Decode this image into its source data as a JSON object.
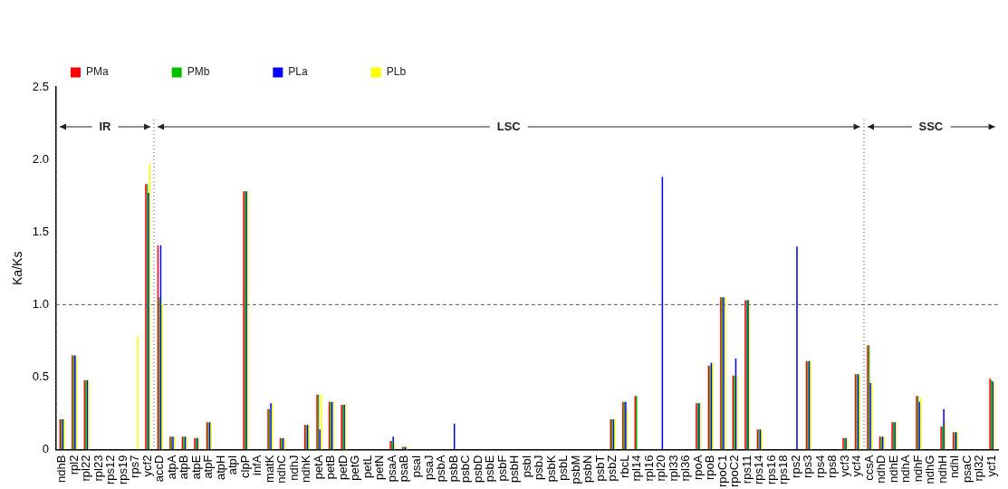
{
  "chart_data": {
    "type": "bar",
    "ylabel": "Ka/Ks",
    "categories": [
      "ndhB",
      "rpl2",
      "rpl22",
      "rpl23",
      "rps12",
      "rps19",
      "rps7",
      "ycf2",
      "accD",
      "atpA",
      "atpB",
      "atpE",
      "atpF",
      "atpH",
      "atpI",
      "clpP",
      "infA",
      "matK",
      "ndhC",
      "ndhJ",
      "ndhK",
      "petA",
      "petB",
      "petD",
      "petG",
      "petL",
      "petN",
      "psaA",
      "psaB",
      "psaI",
      "psaJ",
      "psbA",
      "psbB",
      "psbC",
      "psbD",
      "psbE",
      "psbF",
      "psbH",
      "psbI",
      "psbJ",
      "psbK",
      "psbL",
      "psbM",
      "psbN",
      "psbT",
      "psbZ",
      "rbcL",
      "rpl14",
      "rpl16",
      "rpl20",
      "rpl33",
      "rpl36",
      "rpoA",
      "rpoB",
      "rpoC1",
      "rpoC2",
      "rps11",
      "rps14",
      "rps16",
      "rps18",
      "rps2",
      "rps3",
      "rps4",
      "rps8",
      "ycf3",
      "ycf4",
      "ccsA",
      "ndhD",
      "ndhE",
      "ndhA",
      "ndhF",
      "ndhG",
      "ndhH",
      "ndhI",
      "psaC",
      "rpl32",
      "ycf1"
    ],
    "series": [
      {
        "name": "PMa",
        "color": "#ff0000",
        "values": [
          0.21,
          0.65,
          0.48,
          0,
          0,
          0,
          0,
          1.83,
          1.41,
          0.09,
          0.09,
          0.08,
          0.19,
          0,
          0,
          1.78,
          0,
          0.28,
          0.08,
          0,
          0.17,
          0.38,
          0.33,
          0.31,
          0,
          0,
          0,
          0.06,
          0.02,
          0,
          0,
          0,
          0,
          0,
          0,
          0,
          0,
          0,
          0,
          0,
          0,
          0,
          0,
          0,
          0,
          0.21,
          0.33,
          0.37,
          0,
          0,
          0,
          0,
          0.32,
          0.58,
          1.05,
          0.51,
          1.03,
          0.14,
          0,
          0,
          0,
          0.61,
          0,
          0,
          0.08,
          0.52,
          0.72,
          0.09,
          0.19,
          0,
          0.37,
          0,
          0.16,
          0.12,
          0,
          0,
          0.49
        ]
      },
      {
        "name": "PMb",
        "color": "#00c000",
        "values": [
          0.21,
          0.65,
          0.48,
          0,
          0,
          0,
          0,
          1.83,
          1.05,
          0.09,
          0.09,
          0.08,
          0.19,
          0,
          0,
          1.78,
          0,
          0.28,
          0.08,
          0,
          0.17,
          0.38,
          0.33,
          0.31,
          0,
          0,
          0,
          0.06,
          0.02,
          0,
          0,
          0,
          0,
          0,
          0,
          0,
          0,
          0,
          0,
          0,
          0,
          0,
          0,
          0,
          0,
          0.21,
          0.33,
          0.37,
          0,
          0,
          0,
          0,
          0.32,
          0.58,
          1.05,
          0.51,
          1.03,
          0.14,
          0,
          0,
          0,
          0.61,
          0,
          0,
          0.08,
          0.52,
          0.72,
          0.09,
          0.19,
          0,
          0.37,
          0,
          0.16,
          0.12,
          0,
          0,
          0.48
        ]
      },
      {
        "name": "PLa",
        "color": "#0000ff",
        "values": [
          0.21,
          0.65,
          0.48,
          0,
          0,
          0,
          0,
          1.77,
          1.41,
          0.09,
          0.09,
          0.08,
          0.19,
          0,
          0,
          1.78,
          0,
          0.32,
          0.08,
          0,
          0.17,
          0.14,
          0.33,
          0.31,
          0,
          0,
          0,
          0.09,
          0.02,
          0,
          0,
          0,
          0.18,
          0,
          0,
          0,
          0,
          0,
          0,
          0,
          0,
          0,
          0,
          0,
          0,
          0.21,
          0.33,
          0,
          0,
          1.88,
          0,
          0,
          0.32,
          0.6,
          1.05,
          0.63,
          1.03,
          0.14,
          0,
          0,
          1.4,
          0.61,
          0,
          0,
          0.08,
          0.52,
          0.46,
          0.09,
          0.19,
          0,
          0.33,
          0,
          0.28,
          0.12,
          0,
          0,
          0.47
        ]
      },
      {
        "name": "PLb",
        "color": "#ffff00",
        "values": [
          0.21,
          0.64,
          0.48,
          0,
          0,
          0,
          0.78,
          1.97,
          1.0,
          0.09,
          0.09,
          0.08,
          0.19,
          0,
          0,
          1.78,
          0,
          0.32,
          0.08,
          0,
          0.17,
          0.38,
          0.33,
          0.31,
          0,
          0,
          0,
          0.05,
          0.02,
          0,
          0,
          0,
          0,
          0,
          0,
          0,
          0,
          0,
          0,
          0,
          0,
          0,
          0,
          0,
          0,
          0.21,
          0.28,
          0,
          0,
          0,
          0,
          0,
          0.32,
          0.6,
          1.05,
          0.51,
          1.03,
          0.14,
          0,
          0,
          0,
          0.61,
          0,
          0,
          0.08,
          0.52,
          0.46,
          0.09,
          0.19,
          0,
          0.36,
          0,
          0.19,
          0.12,
          0,
          0,
          0.46
        ]
      }
    ],
    "ylim": [
      0,
      2.5
    ],
    "yticks": [
      {
        "value": 0,
        "label": "0"
      },
      {
        "value": 0.5,
        "label": "0.5"
      },
      {
        "value": 1,
        "label": "1.0"
      },
      {
        "value": 1.5,
        "label": "1.5"
      },
      {
        "value": 2,
        "label": "2.0"
      },
      {
        "value": 2.5,
        "label": "2.5"
      }
    ],
    "ref_lines": [
      {
        "axis": "y",
        "value": 1,
        "line_style": "dashed",
        "color": "#555555"
      }
    ],
    "annotations": [
      "IR",
      "LSC",
      "SSC"
    ],
    "grid": false,
    "legend": "top left"
  }
}
